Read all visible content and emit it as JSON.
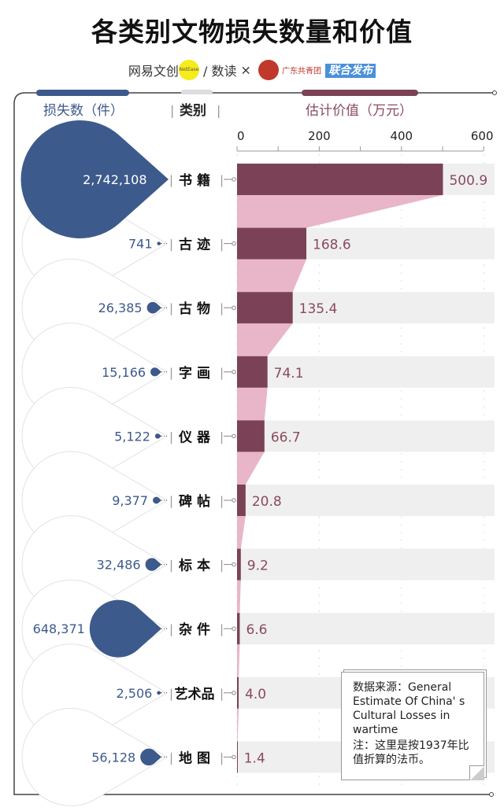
{
  "title": "各类别文物损失数量和价值",
  "publishers": {
    "netease": "网易文创",
    "netease_badge": "NetEase",
    "shudu": "/ 数读",
    "times": "×",
    "gd": "广东共青团",
    "joint": "联合发布"
  },
  "chart_data": {
    "type": "bar",
    "title": "各类别文物损失数量和价值",
    "column_headers": {
      "count": "损失数（件）",
      "category": "类别",
      "value": "估计价值（万元）"
    },
    "categories": [
      "书 籍",
      "古 迹",
      "古 物",
      "字 画",
      "仪 器",
      "碑 帖",
      "标 本",
      "杂 件",
      "艺术品",
      "地 图"
    ],
    "series": [
      {
        "name": "损失数（件）",
        "values": [
          2742108,
          741,
          26385,
          15166,
          5122,
          9377,
          32486,
          648371,
          2506,
          56128
        ],
        "labels": [
          "2,742,108",
          "741",
          "26,385",
          "15,166",
          "5,122",
          "9,377",
          "32,486",
          "648,371",
          "2,506",
          "56,128"
        ]
      },
      {
        "name": "估计价值（万元）",
        "values": [
          500.9,
          168.6,
          135.4,
          74.1,
          66.7,
          20.8,
          9.2,
          6.6,
          4.0,
          1.4
        ],
        "labels": [
          "500.9",
          "168.6",
          "135.4",
          "74.1",
          "66.7",
          "20.8",
          "9.2",
          "6.6",
          "4.0",
          "1.4"
        ]
      }
    ],
    "xlim": [
      0,
      600
    ],
    "xticks": [
      "0",
      "200",
      "400",
      "600"
    ],
    "colors": {
      "count": "#3d5a8c",
      "value_bar": "#7b4257",
      "funnel": "#e8b6c8",
      "value_text": "#8b4a5c",
      "band": "#efefef"
    }
  },
  "note": {
    "source": "数据来源：General Estimate Of China' s Cultural Losses in wartime",
    "remark": "注：这里是按1937年比值折算的法币。"
  }
}
